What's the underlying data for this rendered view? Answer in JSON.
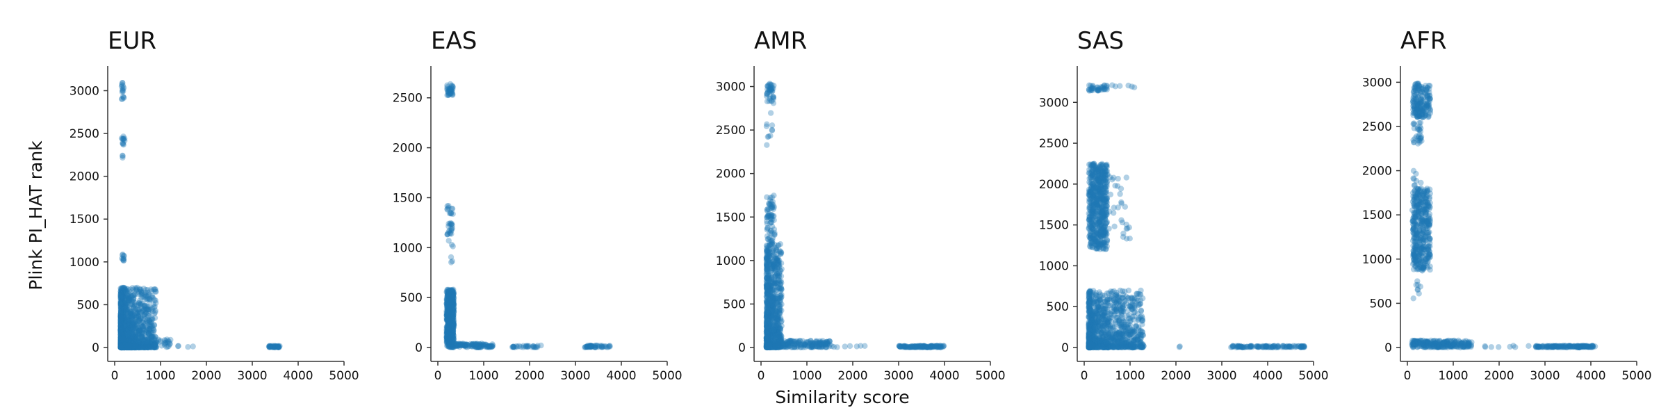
{
  "figure": {
    "xlabel": "Similarity score",
    "ylabel": "Plink PI_HAT rank",
    "point_color": "#1f77b4",
    "point_alpha": 0.35
  },
  "chart_data": [
    {
      "type": "scatter",
      "title": "EUR",
      "xlim": [
        0,
        5000
      ],
      "ylim": [
        0,
        3150
      ],
      "xticks": [
        0,
        1000,
        2000,
        3000,
        4000,
        5000
      ],
      "yticks": [
        0,
        500,
        1000,
        1500,
        2000,
        2500,
        3000
      ],
      "clusters": [
        {
          "x": [
            150,
            200
          ],
          "y": [
            2900,
            3100
          ],
          "n": 16
        },
        {
          "x": [
            150,
            220
          ],
          "y": [
            2350,
            2470
          ],
          "n": 12
        },
        {
          "x": [
            150,
            200
          ],
          "y": [
            2150,
            2250
          ],
          "n": 3
        },
        {
          "x": [
            150,
            210
          ],
          "y": [
            1000,
            1100
          ],
          "n": 10
        },
        {
          "x": [
            130,
            900
          ],
          "y": [
            0,
            700
          ],
          "n": 1400,
          "skew": 2.2
        },
        {
          "x": [
            850,
            1250
          ],
          "y": [
            0,
            100
          ],
          "n": 30
        },
        {
          "x": [
            1300,
            1900
          ],
          "y": [
            0,
            20
          ],
          "n": 4
        },
        {
          "x": [
            3350,
            3600
          ],
          "y": [
            0,
            20
          ],
          "n": 40
        }
      ]
    },
    {
      "type": "scatter",
      "title": "EAS",
      "xlim": [
        0,
        5000
      ],
      "ylim": [
        0,
        2700
      ],
      "xticks": [
        0,
        1000,
        2000,
        3000,
        4000,
        5000
      ],
      "yticks": [
        0,
        500,
        1000,
        1500,
        2000,
        2500
      ],
      "clusters": [
        {
          "x": [
            200,
            330
          ],
          "y": [
            2520,
            2640
          ],
          "n": 40
        },
        {
          "x": [
            200,
            330
          ],
          "y": [
            1330,
            1420
          ],
          "n": 12
        },
        {
          "x": [
            200,
            330
          ],
          "y": [
            1130,
            1250
          ],
          "n": 20
        },
        {
          "x": [
            200,
            330
          ],
          "y": [
            800,
            1100
          ],
          "n": 6
        },
        {
          "x": [
            190,
            350
          ],
          "y": [
            0,
            580
          ],
          "n": 700
        },
        {
          "x": [
            350,
            1200
          ],
          "y": [
            0,
            40
          ],
          "n": 120
        },
        {
          "x": [
            1600,
            2250
          ],
          "y": [
            0,
            20
          ],
          "n": 30
        },
        {
          "x": [
            3200,
            3750
          ],
          "y": [
            0,
            20
          ],
          "n": 50
        }
      ]
    },
    {
      "type": "scatter",
      "title": "AMR",
      "xlim": [
        0,
        5000
      ],
      "ylim": [
        0,
        3100
      ],
      "xticks": [
        0,
        1000,
        2000,
        3000,
        4000,
        5000
      ],
      "yticks": [
        0,
        500,
        1000,
        1500,
        2000,
        2500,
        3000
      ],
      "clusters": [
        {
          "x": [
            120,
            280
          ],
          "y": [
            2800,
            3050
          ],
          "n": 40
        },
        {
          "x": [
            120,
            250
          ],
          "y": [
            2300,
            2750
          ],
          "n": 10
        },
        {
          "x": [
            120,
            300
          ],
          "y": [
            1200,
            1750
          ],
          "n": 70
        },
        {
          "x": [
            120,
            450
          ],
          "y": [
            0,
            1200
          ],
          "n": 900,
          "skew": 1.8
        },
        {
          "x": [
            300,
            1500
          ],
          "y": [
            0,
            80
          ],
          "n": 180
        },
        {
          "x": [
            1500,
            2300
          ],
          "y": [
            0,
            20
          ],
          "n": 8
        },
        {
          "x": [
            3000,
            4000
          ],
          "y": [
            0,
            20
          ],
          "n": 120
        }
      ]
    },
    {
      "type": "scatter",
      "title": "SAS",
      "xlim": [
        0,
        5000
      ],
      "ylim": [
        0,
        3300
      ],
      "xticks": [
        0,
        1000,
        2000,
        3000,
        4000,
        5000
      ],
      "yticks": [
        0,
        500,
        1000,
        1500,
        2000,
        2500,
        3000
      ],
      "clusters": [
        {
          "x": [
            100,
            500
          ],
          "y": [
            3140,
            3210
          ],
          "n": 40
        },
        {
          "x": [
            600,
            1250
          ],
          "y": [
            3180,
            3210
          ],
          "n": 6
        },
        {
          "x": [
            100,
            500
          ],
          "y": [
            1200,
            2250
          ],
          "n": 600
        },
        {
          "x": [
            500,
            1000
          ],
          "y": [
            1250,
            2150
          ],
          "n": 30
        },
        {
          "x": [
            100,
            1300
          ],
          "y": [
            0,
            700
          ],
          "n": 1100,
          "skew": 2.0
        },
        {
          "x": [
            1900,
            2150
          ],
          "y": [
            0,
            20
          ],
          "n": 2
        },
        {
          "x": [
            3200,
            4800
          ],
          "y": [
            0,
            20
          ],
          "n": 120
        }
      ]
    },
    {
      "type": "scatter",
      "title": "AFR",
      "xlim": [
        0,
        5000
      ],
      "ylim": [
        0,
        3050
      ],
      "xticks": [
        0,
        1000,
        2000,
        3000,
        4000,
        5000
      ],
      "yticks": [
        0,
        500,
        1000,
        1500,
        2000,
        2500,
        3000
      ],
      "clusters": [
        {
          "x": [
            120,
            500
          ],
          "y": [
            2600,
            2990
          ],
          "n": 180
        },
        {
          "x": [
            120,
            350
          ],
          "y": [
            2300,
            2550
          ],
          "n": 30
        },
        {
          "x": [
            100,
            300
          ],
          "y": [
            550,
            2000
          ],
          "n": 40
        },
        {
          "x": [
            120,
            500
          ],
          "y": [
            850,
            1800
          ],
          "n": 400
        },
        {
          "x": [
            100,
            1400
          ],
          "y": [
            0,
            80
          ],
          "n": 250
        },
        {
          "x": [
            1600,
            2800
          ],
          "y": [
            0,
            20
          ],
          "n": 8
        },
        {
          "x": [
            2800,
            4100
          ],
          "y": [
            0,
            20
          ],
          "n": 150
        }
      ]
    }
  ]
}
